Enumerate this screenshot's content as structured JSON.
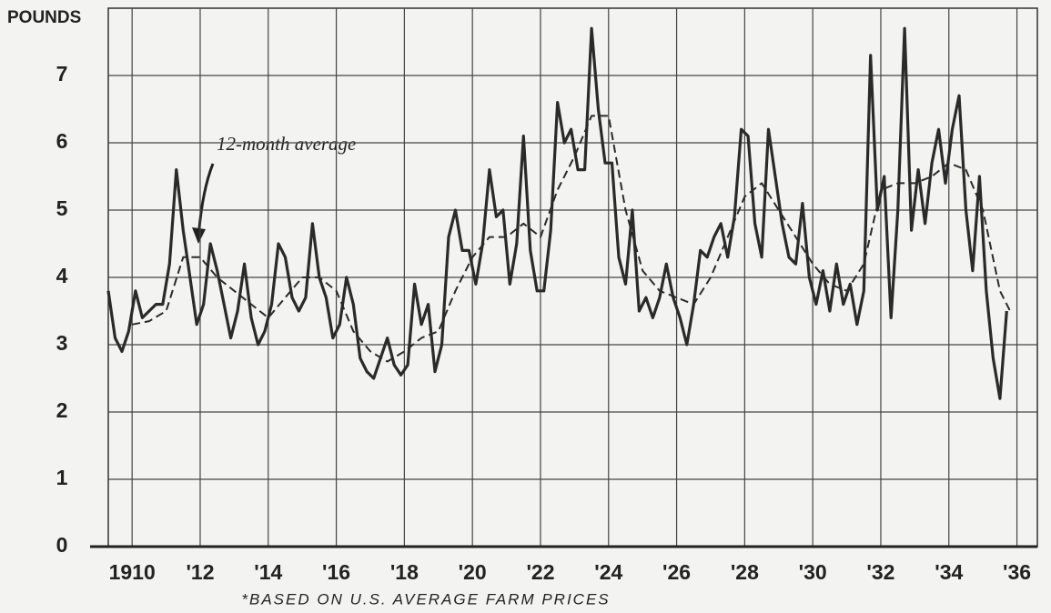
{
  "chart_data": {
    "type": "line",
    "y_label": "POUNDS",
    "footnote": "*BASED ON U.S. AVERAGE FARM PRICES",
    "xlim": [
      1909.3,
      1936.6
    ],
    "xticks": [
      1910,
      {
        "value": 1912,
        "label": "'12"
      },
      {
        "value": 1914,
        "label": "'14"
      },
      {
        "value": 1916,
        "label": "'16"
      },
      {
        "value": 1918,
        "label": "'18"
      },
      {
        "value": 1920,
        "label": "'20"
      },
      {
        "value": 1922,
        "label": "'22"
      },
      {
        "value": 1924,
        "label": "'24"
      },
      {
        "value": 1926,
        "label": "'26"
      },
      {
        "value": 1928,
        "label": "'28"
      },
      {
        "value": 1930,
        "label": "'30"
      },
      {
        "value": 1932,
        "label": "'32"
      },
      {
        "value": 1934,
        "label": "'34"
      },
      {
        "value": 1936,
        "label": "'36"
      }
    ],
    "ylim": [
      0,
      8
    ],
    "yticks": [
      0,
      1,
      2,
      3,
      4,
      5,
      6,
      7
    ],
    "grid": true,
    "series": [
      {
        "color": "#2a2a2a",
        "dash": false,
        "x": [
          1909.3,
          1909.5,
          1909.7,
          1909.9,
          1910.1,
          1910.3,
          1910.5,
          1910.7,
          1910.9,
          1911.1,
          1911.3,
          1911.5,
          1911.7,
          1911.9,
          1912.1,
          1912.3,
          1912.5,
          1912.7,
          1912.9,
          1913.1,
          1913.3,
          1913.5,
          1913.7,
          1913.9,
          1914.1,
          1914.3,
          1914.5,
          1914.7,
          1914.9,
          1915.1,
          1915.3,
          1915.5,
          1915.7,
          1915.9,
          1916.1,
          1916.3,
          1916.5,
          1916.7,
          1916.9,
          1917.1,
          1917.3,
          1917.5,
          1917.7,
          1917.9,
          1918.1,
          1918.3,
          1918.5,
          1918.7,
          1918.9,
          1919.1,
          1919.3,
          1919.5,
          1919.7,
          1919.9,
          1920.1,
          1920.3,
          1920.5,
          1920.7,
          1920.9,
          1921.1,
          1921.3,
          1921.5,
          1921.7,
          1921.9,
          1922.1,
          1922.3,
          1922.5,
          1922.7,
          1922.9,
          1923.1,
          1923.3,
          1923.5,
          1923.7,
          1923.9,
          1924.1,
          1924.3,
          1924.5,
          1924.7,
          1924.9,
          1925.1,
          1925.3,
          1925.5,
          1925.7,
          1925.9,
          1926.1,
          1926.3,
          1926.5,
          1926.7,
          1926.9,
          1927.1,
          1927.3,
          1927.5,
          1927.7,
          1927.9,
          1928.1,
          1928.3,
          1928.5,
          1928.7,
          1928.9,
          1929.1,
          1929.3,
          1929.5,
          1929.7,
          1929.9,
          1930.1,
          1930.3,
          1930.5,
          1930.7,
          1930.9,
          1931.1,
          1931.3,
          1931.5,
          1931.7,
          1931.9,
          1932.1,
          1932.3,
          1932.5,
          1932.7,
          1932.9,
          1933.1,
          1933.3,
          1933.5,
          1933.7,
          1933.9,
          1934.1,
          1934.3,
          1934.5,
          1934.7,
          1934.9,
          1935.1,
          1935.3,
          1935.5,
          1935.7
        ],
        "values": [
          3.8,
          3.1,
          2.9,
          3.2,
          3.8,
          3.4,
          3.5,
          3.6,
          3.6,
          4.2,
          5.6,
          4.7,
          4.0,
          3.3,
          3.6,
          4.5,
          4.1,
          3.6,
          3.1,
          3.5,
          4.2,
          3.4,
          3.0,
          3.2,
          3.6,
          4.5,
          4.3,
          3.7,
          3.5,
          3.7,
          4.8,
          4.0,
          3.7,
          3.1,
          3.3,
          4.0,
          3.6,
          2.8,
          2.6,
          2.5,
          2.8,
          3.1,
          2.7,
          2.55,
          2.7,
          3.9,
          3.3,
          3.6,
          2.6,
          3.0,
          4.6,
          5.0,
          4.4,
          4.4,
          3.9,
          4.5,
          5.6,
          4.9,
          5.0,
          3.9,
          4.5,
          6.1,
          4.4,
          3.8,
          3.8,
          4.7,
          6.6,
          6.0,
          6.2,
          5.6,
          5.6,
          7.7,
          6.5,
          5.7,
          5.7,
          4.3,
          3.9,
          5.0,
          3.5,
          3.7,
          3.4,
          3.7,
          4.2,
          3.7,
          3.4,
          3.0,
          3.6,
          4.4,
          4.3,
          4.6,
          4.8,
          4.3,
          4.9,
          6.2,
          6.1,
          4.8,
          4.3,
          6.2,
          5.5,
          4.8,
          4.3,
          4.2,
          5.1,
          4.0,
          3.6,
          4.1,
          3.5,
          4.2,
          3.6,
          3.9,
          3.3,
          3.8,
          7.3,
          5.0,
          5.5,
          3.4,
          5.0,
          7.7,
          4.7,
          5.6,
          4.8,
          5.7,
          6.2,
          5.4,
          6.2,
          6.7,
          5.0,
          4.1,
          5.5,
          3.8,
          2.8,
          2.2,
          3.5
        ]
      },
      {
        "name": "12-month average",
        "color": "#2a2a2a",
        "dash": true,
        "x": [
          1910.0,
          1910.5,
          1911.0,
          1911.5,
          1912.0,
          1912.5,
          1913.0,
          1913.5,
          1914.0,
          1914.5,
          1915.0,
          1915.5,
          1916.0,
          1916.5,
          1917.0,
          1917.5,
          1918.0,
          1918.5,
          1919.0,
          1919.5,
          1920.0,
          1920.5,
          1921.0,
          1921.5,
          1922.0,
          1922.5,
          1923.0,
          1923.5,
          1924.0,
          1924.5,
          1925.0,
          1925.5,
          1926.0,
          1926.5,
          1927.0,
          1927.5,
          1928.0,
          1928.5,
          1929.0,
          1929.5,
          1930.0,
          1930.5,
          1931.0,
          1931.5,
          1932.0,
          1932.5,
          1933.0,
          1933.5,
          1934.0,
          1934.5,
          1935.0,
          1935.5,
          1935.8
        ],
        "values": [
          3.3,
          3.35,
          3.5,
          4.3,
          4.3,
          4.0,
          3.8,
          3.6,
          3.4,
          3.7,
          4.0,
          4.0,
          3.8,
          3.2,
          2.9,
          2.75,
          2.9,
          3.1,
          3.2,
          3.8,
          4.3,
          4.6,
          4.6,
          4.8,
          4.6,
          5.3,
          5.8,
          6.4,
          6.4,
          5.0,
          4.1,
          3.8,
          3.7,
          3.6,
          4.0,
          4.6,
          5.2,
          5.4,
          5.0,
          4.6,
          4.2,
          3.9,
          3.8,
          4.2,
          5.3,
          5.4,
          5.4,
          5.5,
          5.7,
          5.6,
          5.0,
          3.8,
          3.5
        ]
      }
    ]
  }
}
